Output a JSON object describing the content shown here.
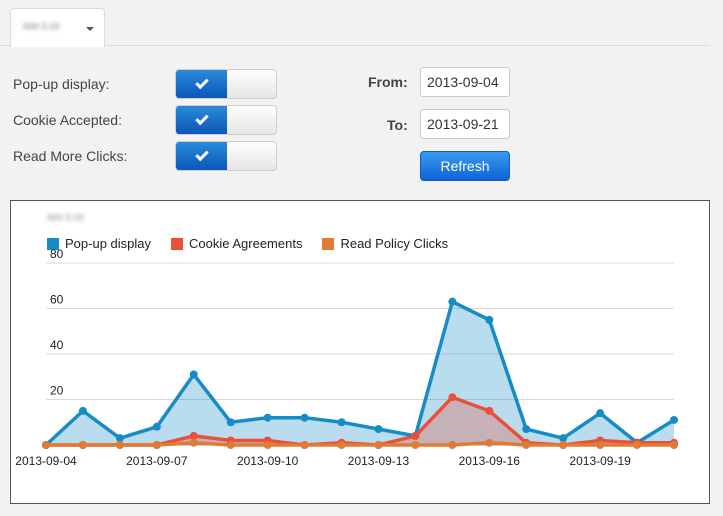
{
  "tab": {
    "label": "xxx-1.cz"
  },
  "filters": {
    "popup_label": "Pop-up display:",
    "cookie_label": "Cookie Accepted:",
    "readmore_label": "Read More Clicks:"
  },
  "toggles": {
    "popup": "on",
    "cookie": "on",
    "readmore": "on"
  },
  "dates": {
    "from_label": "From:",
    "from_value": "2013-09-04",
    "to_label": "To:",
    "to_value": "2013-09-21"
  },
  "refresh_label": "Refresh",
  "chart_title": "xxx-1.cz",
  "colors": {
    "popup": "#168cc7",
    "cookie": "#e8503a",
    "read": "#e07b35",
    "accent": "#0e63d6"
  },
  "chart_data": {
    "type": "area",
    "x": [
      "2013-09-04",
      "2013-09-05",
      "2013-09-06",
      "2013-09-07",
      "2013-09-08",
      "2013-09-09",
      "2013-09-10",
      "2013-09-11",
      "2013-09-12",
      "2013-09-13",
      "2013-09-14",
      "2013-09-15",
      "2013-09-16",
      "2013-09-17",
      "2013-09-18",
      "2013-09-19",
      "2013-09-20",
      "2013-09-21"
    ],
    "xticks": [
      "2013-09-04",
      "2013-09-07",
      "2013-09-10",
      "2013-09-13",
      "2013-09-16",
      "2013-09-19"
    ],
    "yticks": [
      20,
      40,
      60,
      80
    ],
    "ylim": [
      0,
      80
    ],
    "grid": true,
    "legend_position": "top-left",
    "series": [
      {
        "name": "Pop-up display",
        "values": [
          0,
          15,
          3,
          8,
          31,
          10,
          12,
          12,
          10,
          7,
          4,
          63,
          55,
          7,
          3,
          14,
          1,
          11
        ]
      },
      {
        "name": "Cookie Agreements",
        "values": [
          0,
          0,
          0,
          0,
          4,
          2,
          2,
          0,
          1,
          0,
          4,
          21,
          15,
          1,
          0,
          2,
          1,
          1
        ]
      },
      {
        "name": "Read Policy Clicks",
        "values": [
          0,
          0,
          0,
          0,
          1,
          0,
          0,
          0,
          0,
          0,
          0,
          0,
          1,
          0,
          0,
          0,
          0,
          0
        ]
      }
    ]
  }
}
